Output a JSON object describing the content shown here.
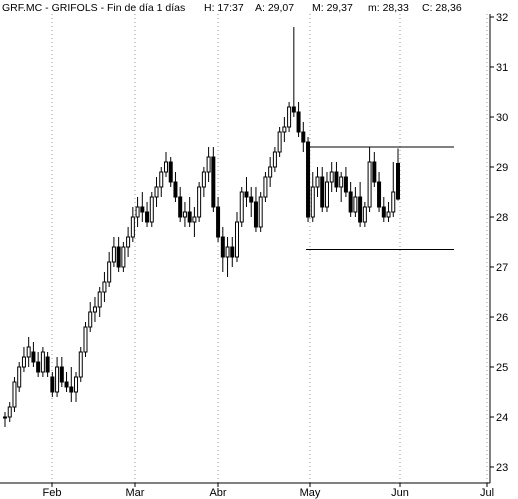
{
  "chart_data": {
    "type": "candlestick",
    "title": "GRF.MC - GRIFOLS - Fin de día 1 días",
    "ohlc_header": {
      "time": "H: 17:37",
      "open": "A: 29,07",
      "high": "M: 29,37",
      "low": "m: 28,33",
      "close": "C: 28,36"
    },
    "y_axis": {
      "position": "right",
      "min": 23,
      "max": 32,
      "ticks": [
        "23",
        "24",
        "25",
        "26",
        "27",
        "28",
        "29",
        "30",
        "31",
        "32"
      ]
    },
    "x_axis": {
      "labels": [
        "Feb",
        "Mar",
        "Abr",
        "May",
        "Jun",
        "Jul"
      ]
    },
    "grid": "vertical-dotted",
    "candles": [
      [
        24.0,
        24.1,
        23.8,
        24.0
      ],
      [
        24.0,
        24.3,
        23.9,
        24.2
      ],
      [
        24.2,
        24.8,
        24.1,
        24.7
      ],
      [
        24.6,
        25.1,
        24.5,
        25.0
      ],
      [
        25.0,
        25.4,
        24.9,
        25.2
      ],
      [
        25.2,
        25.6,
        25.0,
        25.4
      ],
      [
        25.3,
        25.5,
        25.0,
        25.1
      ],
      [
        25.1,
        25.3,
        24.8,
        24.9
      ],
      [
        24.9,
        25.4,
        24.8,
        25.3
      ],
      [
        25.2,
        25.3,
        24.8,
        24.9
      ],
      [
        24.8,
        24.9,
        24.4,
        24.5
      ],
      [
        24.5,
        25.2,
        24.4,
        25.0
      ],
      [
        25.0,
        25.2,
        24.6,
        24.7
      ],
      [
        24.7,
        24.9,
        24.5,
        24.6
      ],
      [
        24.6,
        25.0,
        24.3,
        24.5
      ],
      [
        24.5,
        24.9,
        24.3,
        24.8
      ],
      [
        24.8,
        25.4,
        24.7,
        25.3
      ],
      [
        25.3,
        25.9,
        25.2,
        25.8
      ],
      [
        25.8,
        26.3,
        25.7,
        26.1
      ],
      [
        26.1,
        26.4,
        25.9,
        26.2
      ],
      [
        26.2,
        26.6,
        26.0,
        26.5
      ],
      [
        26.5,
        26.9,
        26.3,
        26.7
      ],
      [
        26.7,
        27.3,
        26.6,
        27.1
      ],
      [
        27.1,
        27.6,
        27.0,
        27.4
      ],
      [
        27.4,
        27.6,
        26.9,
        27.0
      ],
      [
        27.0,
        27.5,
        26.9,
        27.4
      ],
      [
        27.4,
        27.8,
        27.2,
        27.6
      ],
      [
        27.6,
        28.2,
        27.5,
        28.0
      ],
      [
        28.0,
        28.4,
        27.8,
        28.2
      ],
      [
        28.2,
        28.5,
        27.9,
        28.1
      ],
      [
        28.1,
        28.3,
        27.8,
        27.9
      ],
      [
        27.9,
        28.5,
        27.8,
        28.4
      ],
      [
        28.4,
        28.8,
        28.2,
        28.6
      ],
      [
        28.6,
        29.0,
        28.4,
        28.9
      ],
      [
        28.9,
        29.3,
        28.8,
        29.1
      ],
      [
        29.1,
        29.2,
        28.6,
        28.7
      ],
      [
        28.7,
        28.9,
        28.3,
        28.4
      ],
      [
        28.4,
        28.6,
        27.9,
        28.0
      ],
      [
        28.0,
        28.3,
        27.8,
        28.1
      ],
      [
        28.1,
        28.4,
        27.8,
        27.9
      ],
      [
        27.9,
        28.2,
        27.6,
        28.0
      ],
      [
        28.0,
        28.7,
        27.9,
        28.6
      ],
      [
        28.6,
        29.0,
        28.4,
        28.9
      ],
      [
        28.9,
        29.4,
        28.7,
        29.2
      ],
      [
        29.2,
        29.4,
        28.1,
        28.2
      ],
      [
        28.2,
        28.4,
        27.5,
        27.6
      ],
      [
        27.6,
        27.8,
        26.9,
        27.2
      ],
      [
        27.2,
        27.6,
        26.8,
        27.4
      ],
      [
        27.4,
        27.6,
        27.0,
        27.2
      ],
      [
        27.2,
        28.1,
        27.1,
        27.9
      ],
      [
        27.9,
        28.6,
        27.8,
        28.5
      ],
      [
        28.5,
        28.8,
        28.2,
        28.4
      ],
      [
        28.4,
        28.6,
        28.0,
        28.3
      ],
      [
        28.3,
        28.6,
        27.7,
        27.8
      ],
      [
        27.8,
        28.5,
        27.7,
        28.4
      ],
      [
        28.4,
        28.9,
        28.3,
        28.8
      ],
      [
        28.8,
        29.2,
        28.6,
        29.0
      ],
      [
        29.0,
        29.4,
        28.9,
        29.3
      ],
      [
        29.3,
        29.8,
        29.2,
        29.7
      ],
      [
        29.7,
        30.0,
        29.5,
        29.8
      ],
      [
        29.8,
        30.3,
        29.7,
        30.2
      ],
      [
        30.2,
        31.8,
        30.0,
        30.1
      ],
      [
        30.1,
        30.3,
        29.6,
        29.7
      ],
      [
        29.7,
        29.9,
        29.3,
        29.5
      ],
      [
        29.5,
        29.6,
        27.9,
        28.0
      ],
      [
        28.0,
        28.9,
        27.9,
        28.6
      ],
      [
        28.6,
        29.0,
        28.4,
        28.8
      ],
      [
        28.8,
        29.0,
        28.1,
        28.2
      ],
      [
        28.2,
        28.9,
        28.1,
        28.7
      ],
      [
        28.7,
        29.1,
        28.5,
        28.9
      ],
      [
        28.9,
        29.1,
        28.5,
        28.6
      ],
      [
        28.6,
        28.9,
        28.3,
        28.8
      ],
      [
        28.8,
        29.0,
        28.4,
        28.5
      ],
      [
        28.5,
        28.7,
        28.0,
        28.1
      ],
      [
        28.1,
        28.6,
        28.0,
        28.4
      ],
      [
        28.4,
        28.7,
        27.8,
        27.9
      ],
      [
        27.9,
        28.3,
        27.8,
        28.2
      ],
      [
        28.2,
        29.4,
        28.1,
        29.1
      ],
      [
        29.1,
        29.3,
        28.6,
        28.7
      ],
      [
        28.7,
        28.9,
        28.1,
        28.2
      ],
      [
        28.2,
        28.4,
        27.9,
        28.0
      ],
      [
        28.0,
        28.3,
        27.9,
        28.1
      ],
      [
        28.1,
        29.1,
        28.0,
        28.5
      ],
      [
        29.07,
        29.37,
        28.33,
        28.36
      ]
    ],
    "annotations": {
      "range_box": {
        "upper": 29.4,
        "lower": 27.35,
        "start_index": 64,
        "end_index": 83
      }
    }
  }
}
